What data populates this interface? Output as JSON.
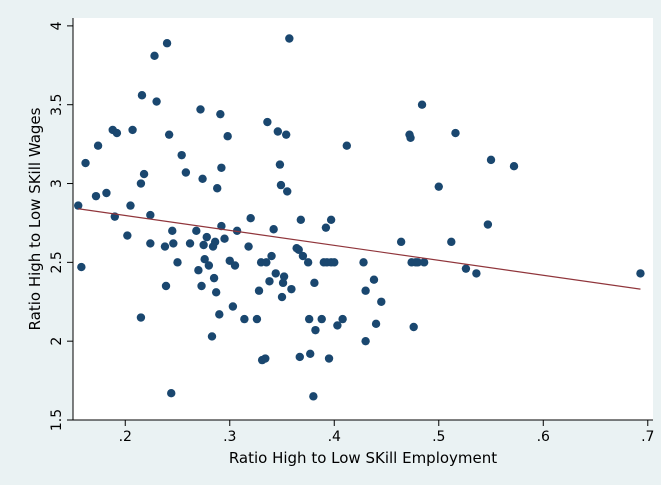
{
  "chart_data": {
    "type": "scatter",
    "title": "",
    "xlabel": "Ratio High to Low SKill Employment",
    "ylabel": "Ratio High to Low SKill Wages",
    "xlim": [
      0.15,
      0.705
    ],
    "ylim": [
      1.5,
      4.05
    ],
    "xticks": [
      0.2,
      0.3,
      0.4,
      0.5,
      0.6,
      0.7
    ],
    "xtick_labels": [
      ".2",
      ".3",
      ".4",
      ".5",
      ".6",
      ".7"
    ],
    "yticks": [
      1.5,
      2,
      2.5,
      3,
      3.5,
      4
    ],
    "ytick_labels": [
      "1.5",
      "2",
      "2.5",
      "3",
      "3.5",
      "4"
    ],
    "grid": false,
    "legend": "none",
    "colors": {
      "points": "#1a476f",
      "fit_line": "#90353b",
      "plot_bg": "#ffffff",
      "outer_bg": "#eaf2f3"
    },
    "fit_line": {
      "x": [
        0.155,
        0.693
      ],
      "y": [
        2.84,
        2.33
      ]
    },
    "points": [
      [
        0.155,
        2.86
      ],
      [
        0.158,
        2.47
      ],
      [
        0.162,
        3.13
      ],
      [
        0.172,
        2.92
      ],
      [
        0.174,
        3.24
      ],
      [
        0.182,
        2.94
      ],
      [
        0.188,
        3.34
      ],
      [
        0.19,
        2.79
      ],
      [
        0.192,
        3.32
      ],
      [
        0.202,
        2.67
      ],
      [
        0.205,
        2.86
      ],
      [
        0.207,
        3.34
      ],
      [
        0.215,
        3.0
      ],
      [
        0.215,
        2.15
      ],
      [
        0.216,
        3.56
      ],
      [
        0.218,
        3.06
      ],
      [
        0.224,
        2.8
      ],
      [
        0.224,
        2.62
      ],
      [
        0.228,
        3.81
      ],
      [
        0.23,
        3.52
      ],
      [
        0.238,
        2.6
      ],
      [
        0.239,
        2.35
      ],
      [
        0.24,
        3.89
      ],
      [
        0.242,
        3.31
      ],
      [
        0.244,
        1.67
      ],
      [
        0.245,
        2.7
      ],
      [
        0.246,
        2.62
      ],
      [
        0.25,
        2.5
      ],
      [
        0.254,
        3.18
      ],
      [
        0.258,
        3.07
      ],
      [
        0.262,
        2.62
      ],
      [
        0.268,
        2.7
      ],
      [
        0.27,
        2.45
      ],
      [
        0.272,
        3.47
      ],
      [
        0.273,
        2.35
      ],
      [
        0.274,
        3.03
      ],
      [
        0.275,
        2.61
      ],
      [
        0.276,
        2.52
      ],
      [
        0.278,
        2.66
      ],
      [
        0.28,
        2.48
      ],
      [
        0.283,
        2.03
      ],
      [
        0.284,
        2.6
      ],
      [
        0.285,
        2.4
      ],
      [
        0.286,
        2.63
      ],
      [
        0.287,
        2.31
      ],
      [
        0.288,
        2.97
      ],
      [
        0.29,
        2.17
      ],
      [
        0.291,
        3.44
      ],
      [
        0.292,
        3.1
      ],
      [
        0.292,
        2.73
      ],
      [
        0.295,
        2.65
      ],
      [
        0.298,
        3.3
      ],
      [
        0.3,
        2.51
      ],
      [
        0.303,
        2.22
      ],
      [
        0.305,
        2.48
      ],
      [
        0.307,
        2.7
      ],
      [
        0.314,
        2.14
      ],
      [
        0.318,
        2.6
      ],
      [
        0.32,
        2.78
      ],
      [
        0.326,
        2.14
      ],
      [
        0.328,
        2.32
      ],
      [
        0.33,
        2.5
      ],
      [
        0.331,
        1.88
      ],
      [
        0.334,
        1.89
      ],
      [
        0.335,
        2.5
      ],
      [
        0.336,
        3.39
      ],
      [
        0.338,
        2.38
      ],
      [
        0.34,
        2.54
      ],
      [
        0.342,
        2.71
      ],
      [
        0.344,
        2.43
      ],
      [
        0.346,
        3.33
      ],
      [
        0.348,
        3.12
      ],
      [
        0.349,
        2.99
      ],
      [
        0.35,
        2.28
      ],
      [
        0.351,
        2.37
      ],
      [
        0.352,
        2.41
      ],
      [
        0.354,
        3.31
      ],
      [
        0.355,
        2.95
      ],
      [
        0.357,
        3.92
      ],
      [
        0.359,
        2.33
      ],
      [
        0.364,
        2.59
      ],
      [
        0.366,
        2.58
      ],
      [
        0.367,
        1.9
      ],
      [
        0.368,
        2.77
      ],
      [
        0.37,
        2.54
      ],
      [
        0.375,
        2.5
      ],
      [
        0.376,
        2.14
      ],
      [
        0.377,
        1.92
      ],
      [
        0.38,
        1.65
      ],
      [
        0.381,
        2.37
      ],
      [
        0.382,
        2.07
      ],
      [
        0.388,
        2.14
      ],
      [
        0.39,
        2.5
      ],
      [
        0.392,
        2.72
      ],
      [
        0.393,
        2.5
      ],
      [
        0.395,
        1.89
      ],
      [
        0.397,
        2.77
      ],
      [
        0.397,
        2.5
      ],
      [
        0.4,
        2.5
      ],
      [
        0.403,
        2.1
      ],
      [
        0.408,
        2.14
      ],
      [
        0.412,
        3.24
      ],
      [
        0.428,
        2.5
      ],
      [
        0.43,
        2.32
      ],
      [
        0.43,
        2.0
      ],
      [
        0.438,
        2.39
      ],
      [
        0.44,
        2.11
      ],
      [
        0.445,
        2.25
      ],
      [
        0.464,
        2.63
      ],
      [
        0.472,
        3.31
      ],
      [
        0.473,
        3.29
      ],
      [
        0.474,
        2.5
      ],
      [
        0.476,
        2.09
      ],
      [
        0.478,
        2.5
      ],
      [
        0.48,
        2.5
      ],
      [
        0.484,
        3.5
      ],
      [
        0.486,
        2.5
      ],
      [
        0.5,
        2.98
      ],
      [
        0.512,
        2.63
      ],
      [
        0.516,
        3.32
      ],
      [
        0.526,
        2.46
      ],
      [
        0.536,
        2.43
      ],
      [
        0.547,
        2.74
      ],
      [
        0.55,
        3.15
      ],
      [
        0.572,
        3.11
      ],
      [
        0.693,
        2.43
      ]
    ]
  }
}
